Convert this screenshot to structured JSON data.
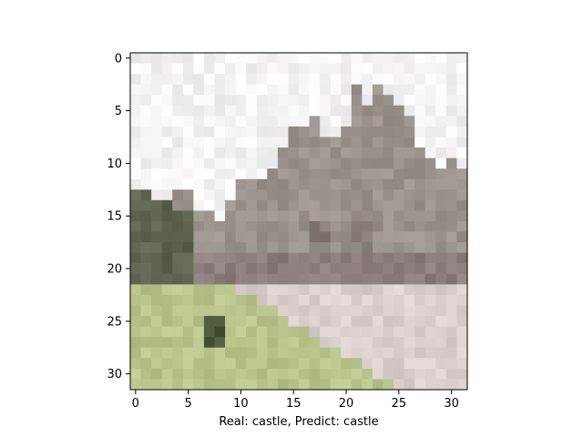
{
  "figure": {
    "xlabel": "Real: castle, Predict: castle",
    "x_ticks": [
      "0",
      "5",
      "10",
      "15",
      "20",
      "25",
      "30"
    ],
    "y_ticks": [
      "0",
      "5",
      "10",
      "15",
      "20",
      "25",
      "30"
    ]
  },
  "image": {
    "description_label": "pixelated castle photo",
    "grid_size": 32,
    "colors": {
      "sky": "#f5f3f3",
      "castle": "#9a928c",
      "castle_dark": "#7a706c",
      "trees": "#5d634e",
      "grass": "#b8c48c",
      "path": "#d9cfcd"
    }
  }
}
